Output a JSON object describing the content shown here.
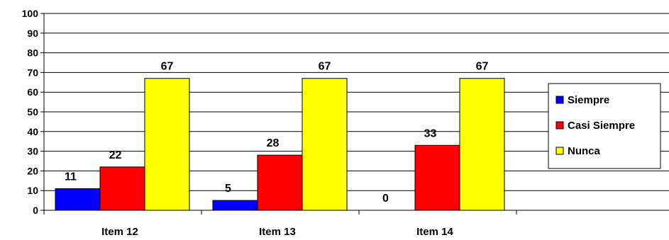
{
  "chart_data": {
    "type": "bar",
    "categories": [
      "Item 12",
      "Item 13",
      "Item 14"
    ],
    "series": [
      {
        "name": "Siempre",
        "values": [
          11,
          5,
          0
        ],
        "color": "#0000ff"
      },
      {
        "name": "Casi Siempre",
        "values": [
          22,
          28,
          33
        ],
        "color": "#ff0000"
      },
      {
        "name": "Nunca",
        "values": [
          67,
          67,
          67
        ],
        "color": "#ffff00"
      }
    ],
    "data_labels": [
      [
        "11",
        "5",
        "0"
      ],
      [
        "22",
        "28",
        "33"
      ],
      [
        "67",
        "67",
        "67"
      ]
    ],
    "y_ticks": [
      "0",
      "10",
      "20",
      "30",
      "40",
      "50",
      "60",
      "70",
      "80",
      "90",
      "100"
    ],
    "ylim": [
      0,
      100
    ],
    "grid": true,
    "legend": "right",
    "title": "",
    "xlabel": "",
    "ylabel": ""
  }
}
